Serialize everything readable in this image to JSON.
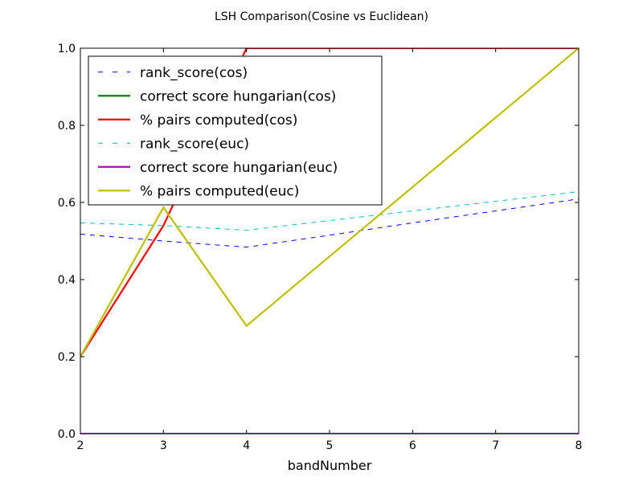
{
  "chart_data": {
    "type": "line",
    "title": "LSH Comparison(Cosine vs Euclidean)",
    "xlabel": "bandNumber",
    "ylabel": "",
    "xlim": [
      2,
      8
    ],
    "ylim": [
      0.0,
      1.0
    ],
    "xticks": [
      2,
      3,
      4,
      5,
      6,
      7,
      8
    ],
    "xtick_labels": [
      "2",
      "3",
      "4",
      "5",
      "6",
      "7",
      "8"
    ],
    "yticks": [
      0.0,
      0.2,
      0.4,
      0.6,
      0.8,
      1.0
    ],
    "ytick_labels": [
      "0.0",
      "0.2",
      "0.4",
      "0.6",
      "0.8",
      "1.0"
    ],
    "grid": false,
    "legend_position": "upper-left",
    "x": [
      2,
      3,
      4,
      5,
      6,
      7,
      8
    ],
    "series": [
      {
        "name": "rank_score(cos)",
        "color": "#0000ff",
        "style": "dashed",
        "values": [
          0.518,
          0.5,
          0.484,
          0.515,
          0.547,
          0.578,
          0.609
        ]
      },
      {
        "name": "correct score hungarian(cos)",
        "color": "#008000",
        "style": "solid",
        "values": [
          0.0,
          0.0,
          0.0,
          0.0,
          0.0,
          0.0,
          0.0
        ]
      },
      {
        "name": "% pairs computed(cos)",
        "color": "#ff0000",
        "style": "solid",
        "values": [
          0.2,
          0.54,
          1.0,
          1.0,
          1.0,
          1.0,
          1.0
        ]
      },
      {
        "name": "rank_score(euc)",
        "color": "#00bfbf",
        "style": "dashed",
        "values": [
          0.547,
          0.54,
          0.528,
          0.553,
          0.578,
          0.603,
          0.628
        ]
      },
      {
        "name": "correct score hungarian(euc)",
        "color": "#bf00bf",
        "style": "solid",
        "values": [
          0.0,
          0.0,
          0.0,
          0.0,
          0.0,
          0.0,
          0.0
        ]
      },
      {
        "name": "% pairs computed(euc)",
        "color": "#bfbf00",
        "style": "solid",
        "values": [
          0.2,
          0.587,
          0.28,
          0.46,
          0.64,
          0.82,
          1.0
        ]
      }
    ]
  }
}
